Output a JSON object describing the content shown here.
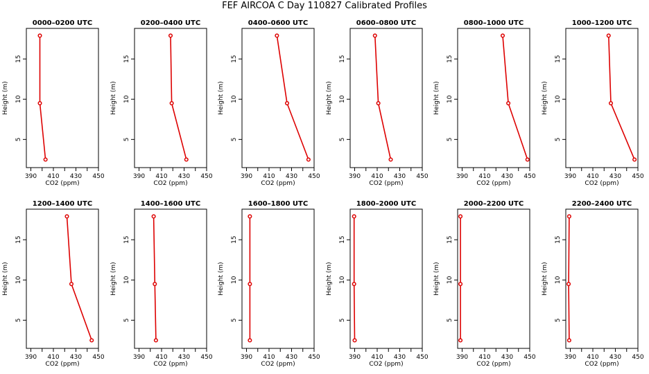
{
  "title": "FEF AIRCOA C  Day 110827  Calibrated Profiles",
  "colors": {
    "line": "#dd0000",
    "frame": "#000000"
  },
  "chart_data": [
    {
      "type": "line",
      "title": "0000–0200 UTC",
      "xlabel": "CO2 (ppm)",
      "ylabel": "Height (m)",
      "xlim": [
        386,
        450
      ],
      "ylim": [
        1.5,
        18.8
      ],
      "xticks": [
        390,
        410,
        430,
        450
      ],
      "yticks": [
        5,
        10,
        15
      ],
      "heights": [
        2.5,
        9.5,
        17.9
      ],
      "co2": [
        403,
        398,
        398
      ]
    },
    {
      "type": "line",
      "title": "0200–0400 UTC",
      "xlabel": "CO2 (ppm)",
      "ylabel": "Height (m)",
      "xlim": [
        386,
        450
      ],
      "ylim": [
        1.5,
        18.8
      ],
      "xticks": [
        390,
        410,
        430,
        450
      ],
      "yticks": [
        5,
        10,
        15
      ],
      "heights": [
        2.5,
        9.5,
        17.9
      ],
      "co2": [
        432,
        419,
        418
      ]
    },
    {
      "type": "line",
      "title": "0400–0600 UTC",
      "xlabel": "CO2 (ppm)",
      "ylabel": "Height (m)",
      "xlim": [
        386,
        450
      ],
      "ylim": [
        1.5,
        18.8
      ],
      "xticks": [
        390,
        410,
        430,
        450
      ],
      "yticks": [
        5,
        10,
        15
      ],
      "heights": [
        2.5,
        9.5,
        17.9
      ],
      "co2": [
        445,
        426,
        417
      ]
    },
    {
      "type": "line",
      "title": "0600–0800 UTC",
      "xlabel": "CO2 (ppm)",
      "ylabel": "Height (m)",
      "xlim": [
        386,
        450
      ],
      "ylim": [
        1.5,
        18.8
      ],
      "xticks": [
        390,
        410,
        430,
        450
      ],
      "yticks": [
        5,
        10,
        15
      ],
      "heights": [
        2.5,
        9.5,
        17.9
      ],
      "co2": [
        422,
        411,
        408
      ]
    },
    {
      "type": "line",
      "title": "0800–1000 UTC",
      "xlabel": "CO2 (ppm)",
      "ylabel": "Height (m)",
      "xlim": [
        386,
        450
      ],
      "ylim": [
        1.5,
        18.8
      ],
      "xticks": [
        390,
        410,
        430,
        450
      ],
      "yticks": [
        5,
        10,
        15
      ],
      "heights": [
        2.5,
        9.5,
        17.9
      ],
      "co2": [
        448,
        431,
        426
      ]
    },
    {
      "type": "line",
      "title": "1000–1200 UTC",
      "xlabel": "CO2 (ppm)",
      "ylabel": "Height (m)",
      "xlim": [
        386,
        450
      ],
      "ylim": [
        1.5,
        18.8
      ],
      "xticks": [
        390,
        410,
        430,
        450
      ],
      "yticks": [
        5,
        10,
        15
      ],
      "heights": [
        2.5,
        9.5,
        17.9
      ],
      "co2": [
        447,
        426,
        424
      ]
    },
    {
      "type": "line",
      "title": "1200–1400 UTC",
      "xlabel": "CO2 (ppm)",
      "ylabel": "Height (m)",
      "xlim": [
        386,
        450
      ],
      "ylim": [
        1.5,
        18.8
      ],
      "xticks": [
        390,
        410,
        430,
        450
      ],
      "yticks": [
        5,
        10,
        15
      ],
      "heights": [
        2.5,
        9.5,
        17.9
      ],
      "co2": [
        444,
        426,
        422
      ]
    },
    {
      "type": "line",
      "title": "1400–1600 UTC",
      "xlabel": "CO2 (ppm)",
      "ylabel": "Height (m)",
      "xlim": [
        386,
        450
      ],
      "ylim": [
        1.5,
        18.8
      ],
      "xticks": [
        390,
        410,
        430,
        450
      ],
      "yticks": [
        5,
        10,
        15
      ],
      "heights": [
        2.5,
        9.5,
        17.9
      ],
      "co2": [
        405,
        404,
        403
      ]
    },
    {
      "type": "line",
      "title": "1600–1800 UTC",
      "xlabel": "CO2 (ppm)",
      "ylabel": "Height (m)",
      "xlim": [
        386,
        450
      ],
      "ylim": [
        1.5,
        18.8
      ],
      "xticks": [
        390,
        410,
        430,
        450
      ],
      "yticks": [
        5,
        10,
        15
      ],
      "heights": [
        2.5,
        9.5,
        17.9
      ],
      "co2": [
        393,
        393,
        393
      ]
    },
    {
      "type": "line",
      "title": "1800–2000 UTC",
      "xlabel": "CO2 (ppm)",
      "ylabel": "Height (m)",
      "xlim": [
        386,
        450
      ],
      "ylim": [
        1.5,
        18.8
      ],
      "xticks": [
        390,
        410,
        430,
        450
      ],
      "yticks": [
        5,
        10,
        15
      ],
      "heights": [
        2.5,
        9.5,
        17.9
      ],
      "co2": [
        390,
        389.5,
        389.5
      ]
    },
    {
      "type": "line",
      "title": "2000–2200 UTC",
      "xlabel": "CO2 (ppm)",
      "ylabel": "Height (m)",
      "xlim": [
        386,
        450
      ],
      "ylim": [
        1.5,
        18.8
      ],
      "xticks": [
        390,
        410,
        430,
        450
      ],
      "yticks": [
        5,
        10,
        15
      ],
      "heights": [
        2.5,
        9.5,
        17.9
      ],
      "co2": [
        388.5,
        388.5,
        388.5
      ]
    },
    {
      "type": "line",
      "title": "2200–2400 UTC",
      "xlabel": "CO2 (ppm)",
      "ylabel": "Height (m)",
      "xlim": [
        386,
        450
      ],
      "ylim": [
        1.5,
        18.8
      ],
      "xticks": [
        390,
        410,
        430,
        450
      ],
      "yticks": [
        5,
        10,
        15
      ],
      "heights": [
        2.5,
        9.5,
        17.9
      ],
      "co2": [
        389,
        388.5,
        389
      ]
    }
  ]
}
